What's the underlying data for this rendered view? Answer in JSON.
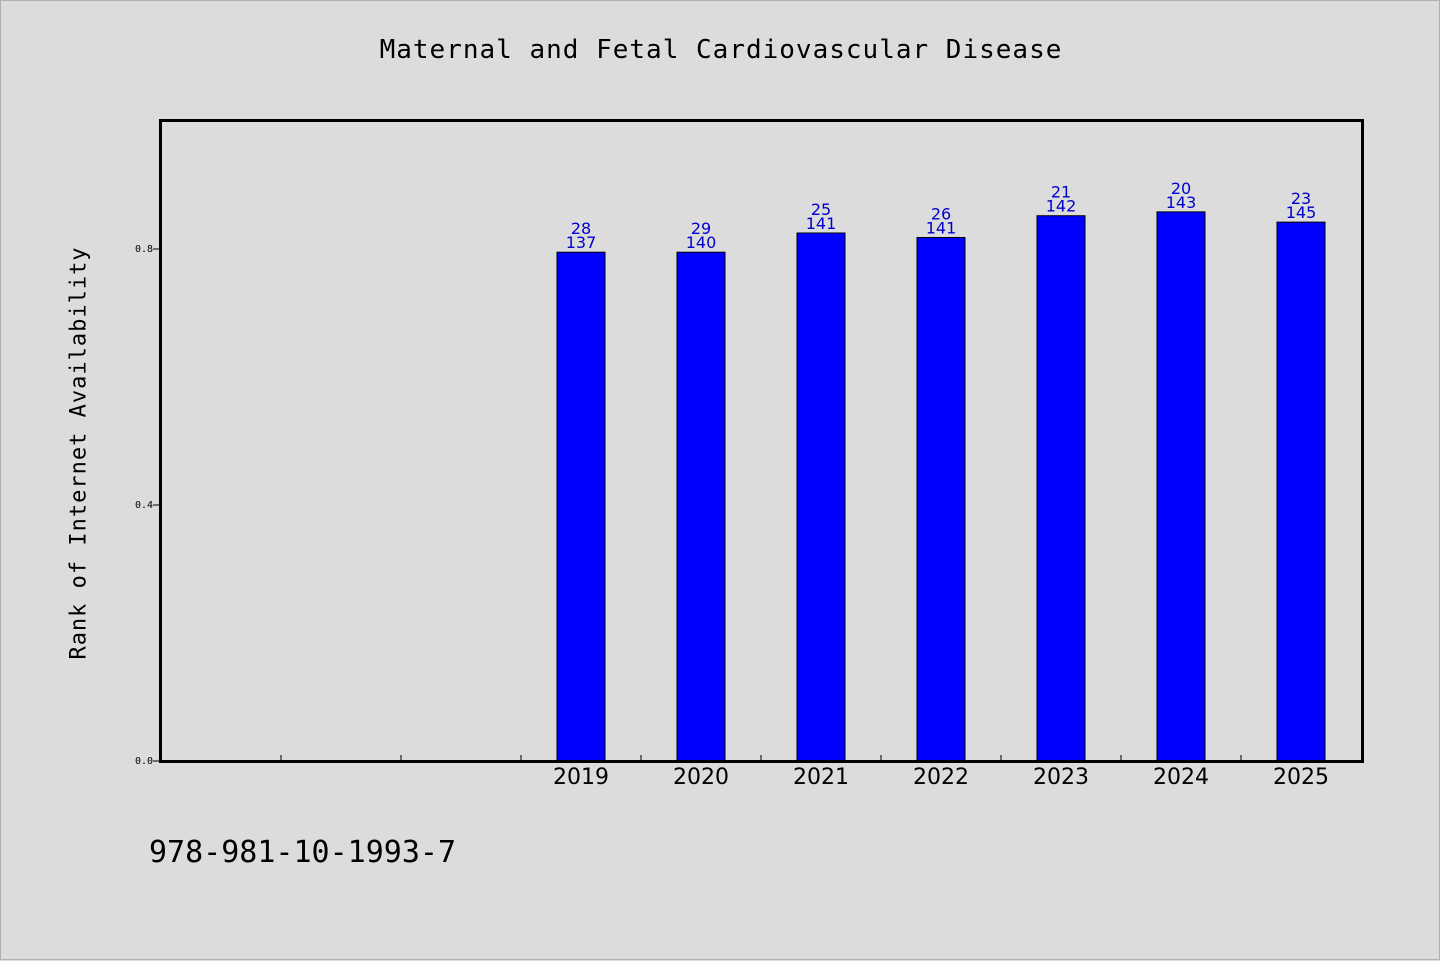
{
  "chart_data": {
    "type": "bar",
    "title": "Maternal and Fetal Cardiovascular Disease",
    "xlabel": "",
    "ylabel": "Rank of Internet Availability",
    "categories": [
      "2019",
      "2020",
      "2021",
      "2022",
      "2023",
      "2024",
      "2025"
    ],
    "values": [
      0.795,
      0.795,
      0.825,
      0.818,
      0.852,
      0.858,
      0.842
    ],
    "data_labels_top": [
      "28",
      "29",
      "25",
      "26",
      "21",
      "20",
      "23"
    ],
    "data_labels_bottom": [
      "137",
      "140",
      "141",
      "141",
      "142",
      "143",
      "145"
    ],
    "y_ticks": [
      "0.0",
      "0.4",
      "0.8"
    ],
    "ylim": [
      0,
      1.0
    ],
    "grid": false,
    "legend": "none",
    "colors": {
      "bar": "#0000ff",
      "label": "#0000cc",
      "axis": "#000000"
    }
  },
  "footer": {
    "code": "978-981-10-1993-7"
  }
}
